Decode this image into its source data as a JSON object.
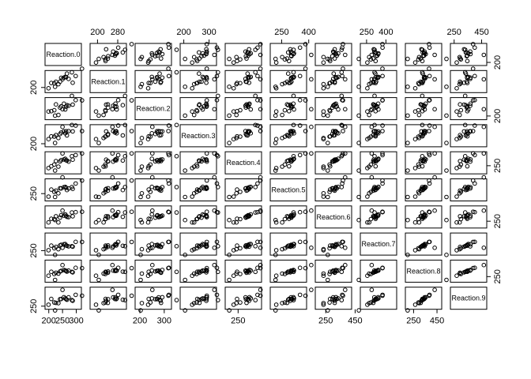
{
  "chart_data": {
    "type": "scatter",
    "variables": [
      "Reaction.0",
      "Reaction.1",
      "Reaction.2",
      "Reaction.3",
      "Reaction.4",
      "Reaction.5",
      "Reaction.6",
      "Reaction.7",
      "Reaction.8",
      "Reaction.9"
    ],
    "ranges": [
      [
        195,
        310
      ],
      [
        180,
        305
      ],
      [
        190,
        320
      ],
      [
        195,
        320
      ],
      [
        200,
        350
      ],
      [
        200,
        375
      ],
      [
        195,
        410
      ],
      [
        220,
        465
      ],
      [
        200,
        470
      ],
      [
        240,
        470
      ]
    ],
    "axes": {
      "top": [
        null,
        {
          "ticks": [
            200,
            280
          ]
        },
        null,
        {
          "ticks": [
            200,
            300
          ]
        },
        null,
        {
          "ticks": [
            250,
            400
          ]
        },
        null,
        {
          "ticks": [
            250,
            400
          ]
        },
        null,
        {
          "ticks": [
            250,
            450
          ]
        }
      ],
      "bottom": [
        {
          "ticks": [
            200,
            250,
            300
          ]
        },
        null,
        {
          "ticks": [
            200,
            300
          ]
        },
        null,
        {
          "ticks": [
            250
          ]
        },
        null,
        {
          "ticks": [
            250,
            450
          ]
        },
        null,
        {
          "ticks": [
            250,
            450
          ]
        },
        null
      ],
      "left": [
        null,
        {
          "ticks": [
            200
          ]
        },
        null,
        {
          "ticks": [
            200
          ]
        },
        null,
        {
          "ticks": [
            250
          ]
        },
        null,
        {
          "ticks": [
            250
          ]
        },
        null,
        {
          "ticks": [
            250
          ]
        }
      ],
      "right": [
        {
          "ticks": [
            200
          ]
        },
        null,
        {
          "ticks": [
            200
          ]
        },
        null,
        {
          "ticks": [
            250
          ]
        },
        null,
        {
          "ticks": [
            250
          ]
        },
        null,
        {
          "ticks": [
            250
          ]
        },
        null
      ]
    },
    "observations": [
      [
        250,
        259,
        251,
        321,
        356,
        414,
        382,
        290,
        430,
        466
      ],
      [
        223,
        205,
        203,
        205,
        208,
        216,
        264,
        190,
        199,
        194
      ],
      [
        199,
        194,
        234,
        233,
        229,
        220,
        235,
        256,
        264,
        269
      ],
      [
        321,
        335,
        317,
        291,
        356,
        382,
        367,
        373,
        382,
        388
      ],
      [
        287,
        234,
        285,
        289,
        302,
        298,
        311,
        306,
        317,
        322
      ],
      [
        235,
        224,
        208,
        241,
        242,
        253,
        235,
        270,
        297,
        290
      ],
      [
        284,
        309,
        351,
        335,
        332,
        316,
        358,
        312,
        324,
        330
      ],
      [
        266,
        300,
        281,
        260,
        295,
        286,
        304,
        318,
        328,
        335
      ],
      [
        272,
        262,
        277,
        291,
        285,
        302,
        301,
        310,
        344,
        367
      ],
      [
        298,
        282,
        319,
        331,
        342,
        352,
        362,
        374,
        386,
        400
      ],
      [
        226,
        241,
        287,
        262,
        290,
        280,
        311,
        302,
        311,
        293
      ],
      [
        263,
        274,
        270,
        290,
        297,
        309,
        317,
        322,
        340,
        344
      ],
      [
        241,
        242,
        263,
        270,
        287,
        304,
        295,
        324,
        330,
        342
      ],
      [
        245,
        269,
        272,
        280,
        298,
        303,
        325,
        333,
        339,
        345
      ],
      [
        209,
        232,
        236,
        253,
        245,
        291,
        280,
        320,
        325,
        346
      ],
      [
        260,
        276,
        249,
        275,
        310,
        318,
        335,
        342,
        345,
        353
      ],
      [
        255,
        271,
        292,
        289,
        304,
        315,
        319,
        340,
        354,
        369
      ],
      [
        220,
        231,
        243,
        251,
        260,
        268,
        276,
        284,
        291,
        299
      ]
    ]
  }
}
